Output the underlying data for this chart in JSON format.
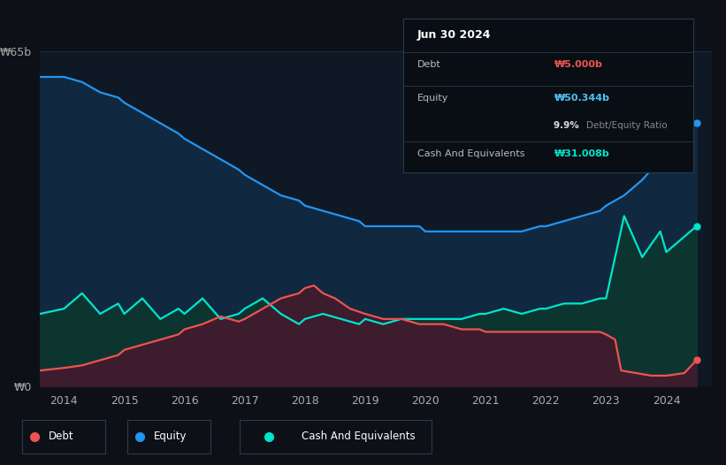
{
  "background_color": "#0d1117",
  "chart_bg_color": "#0e1925",
  "title": "Jun 30 2024",
  "y_label_top": "₩65b",
  "y_label_bottom": "₩0",
  "x_ticks": [
    2014,
    2015,
    2016,
    2017,
    2018,
    2019,
    2020,
    2021,
    2022,
    2023,
    2024
  ],
  "equity_color": "#2196f3",
  "equity_fill_color": "#102840",
  "debt_color": "#ef5350",
  "debt_fill_color": "#3d1c2e",
  "cash_color": "#00e5cc",
  "cash_fill_color": "#0d3530",
  "grid_color": "#1a2d3d",
  "tooltip_bg": "#080e14",
  "tooltip_border": "#2a3a4a",
  "legend_bg": "#0d1117",
  "legend_border": "#2a3a4a",
  "debt_label_color": "#ef5350",
  "equity_label_color": "#4fc3f7",
  "cash_label_color": "#00e5cc",
  "ylim": [
    0,
    65
  ],
  "xlim": [
    2013.6,
    2024.75
  ],
  "equity_data_x": [
    2013.6,
    2014.0,
    2014.3,
    2014.6,
    2014.9,
    2015.0,
    2015.3,
    2015.6,
    2015.9,
    2016.0,
    2016.3,
    2016.6,
    2016.9,
    2017.0,
    2017.3,
    2017.6,
    2017.9,
    2018.0,
    2018.3,
    2018.6,
    2018.9,
    2019.0,
    2019.3,
    2019.6,
    2019.9,
    2020.0,
    2020.3,
    2020.6,
    2020.9,
    2021.0,
    2021.3,
    2021.6,
    2021.9,
    2022.0,
    2022.3,
    2022.6,
    2022.9,
    2023.0,
    2023.3,
    2023.6,
    2023.9,
    2024.0,
    2024.3,
    2024.5
  ],
  "equity_data_y": [
    60,
    60,
    59,
    57,
    56,
    55,
    53,
    51,
    49,
    48,
    46,
    44,
    42,
    41,
    39,
    37,
    36,
    35,
    34,
    33,
    32,
    31,
    31,
    31,
    31,
    30,
    30,
    30,
    30,
    30,
    30,
    30,
    31,
    31,
    32,
    33,
    34,
    35,
    37,
    40,
    44,
    46,
    49,
    51
  ],
  "cash_data_x": [
    2013.6,
    2014.0,
    2014.3,
    2014.6,
    2014.9,
    2015.0,
    2015.3,
    2015.6,
    2015.9,
    2016.0,
    2016.3,
    2016.6,
    2016.9,
    2017.0,
    2017.3,
    2017.6,
    2017.9,
    2018.0,
    2018.3,
    2018.6,
    2018.9,
    2019.0,
    2019.3,
    2019.6,
    2019.9,
    2020.0,
    2020.3,
    2020.6,
    2020.9,
    2021.0,
    2021.3,
    2021.6,
    2021.9,
    2022.0,
    2022.3,
    2022.6,
    2022.9,
    2023.0,
    2023.3,
    2023.6,
    2023.9,
    2024.0,
    2024.3,
    2024.5
  ],
  "cash_data_y": [
    14,
    15,
    18,
    14,
    16,
    14,
    17,
    13,
    15,
    14,
    17,
    13,
    14,
    15,
    17,
    14,
    12,
    13,
    14,
    13,
    12,
    13,
    12,
    13,
    13,
    13,
    13,
    13,
    14,
    14,
    15,
    14,
    15,
    15,
    16,
    16,
    17,
    17,
    33,
    25,
    30,
    26,
    29,
    31
  ],
  "debt_data_x": [
    2013.6,
    2014.0,
    2014.3,
    2014.6,
    2014.9,
    2015.0,
    2015.3,
    2015.6,
    2015.9,
    2016.0,
    2016.3,
    2016.6,
    2016.9,
    2017.0,
    2017.3,
    2017.6,
    2017.9,
    2018.0,
    2018.15,
    2018.3,
    2018.5,
    2018.75,
    2019.0,
    2019.3,
    2019.6,
    2019.9,
    2020.0,
    2020.3,
    2020.6,
    2020.9,
    2021.0,
    2021.3,
    2021.6,
    2021.9,
    2022.0,
    2022.3,
    2022.6,
    2022.9,
    2023.0,
    2023.15,
    2023.25,
    2023.5,
    2023.75,
    2024.0,
    2024.3,
    2024.5
  ],
  "debt_data_y": [
    3,
    3.5,
    4,
    5,
    6,
    7,
    8,
    9,
    10,
    11,
    12,
    13.5,
    12.5,
    13,
    15,
    17,
    18,
    19,
    19.5,
    18,
    17,
    15,
    14,
    13,
    13,
    12,
    12,
    12,
    11,
    11,
    10.5,
    10.5,
    10.5,
    10.5,
    10.5,
    10.5,
    10.5,
    10.5,
    10,
    9,
    3,
    2.5,
    2,
    2,
    2.5,
    5
  ],
  "tooltip": {
    "date": "Jun 30 2024",
    "debt_value": "₩5.000b",
    "equity_value": "₩50.344b",
    "ratio": "9.9%",
    "cash_value": "₩31.008b"
  }
}
